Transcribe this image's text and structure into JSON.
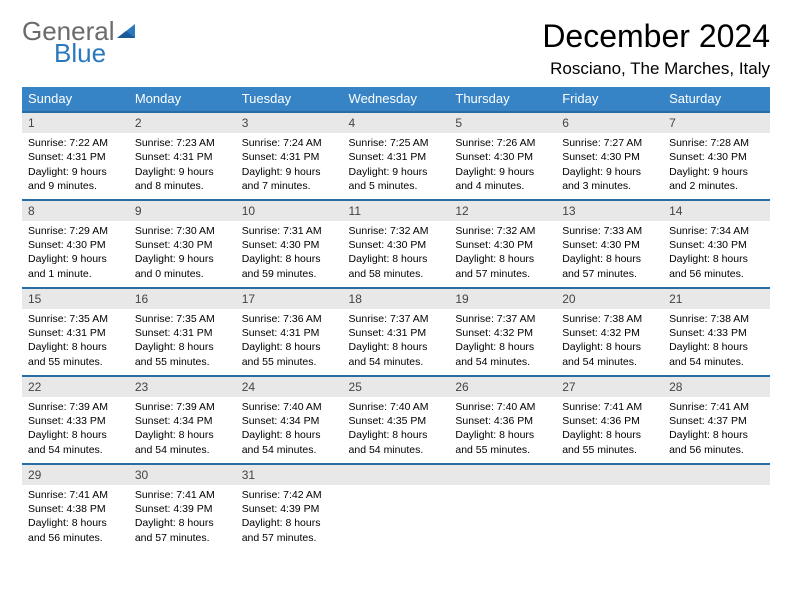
{
  "logo": {
    "text1": "General",
    "text2": "Blue"
  },
  "title": "December 2024",
  "location": "Rosciano, The Marches, Italy",
  "header_color": "#3684c6",
  "divider_color": "#2a6aa5",
  "daynum_bg": "#e8e8e8",
  "weekdays": [
    "Sunday",
    "Monday",
    "Tuesday",
    "Wednesday",
    "Thursday",
    "Friday",
    "Saturday"
  ],
  "weeks": [
    [
      {
        "n": "1",
        "sr": "7:22 AM",
        "ss": "4:31 PM",
        "dl": "9 hours and 9 minutes."
      },
      {
        "n": "2",
        "sr": "7:23 AM",
        "ss": "4:31 PM",
        "dl": "9 hours and 8 minutes."
      },
      {
        "n": "3",
        "sr": "7:24 AM",
        "ss": "4:31 PM",
        "dl": "9 hours and 7 minutes."
      },
      {
        "n": "4",
        "sr": "7:25 AM",
        "ss": "4:31 PM",
        "dl": "9 hours and 5 minutes."
      },
      {
        "n": "5",
        "sr": "7:26 AM",
        "ss": "4:30 PM",
        "dl": "9 hours and 4 minutes."
      },
      {
        "n": "6",
        "sr": "7:27 AM",
        "ss": "4:30 PM",
        "dl": "9 hours and 3 minutes."
      },
      {
        "n": "7",
        "sr": "7:28 AM",
        "ss": "4:30 PM",
        "dl": "9 hours and 2 minutes."
      }
    ],
    [
      {
        "n": "8",
        "sr": "7:29 AM",
        "ss": "4:30 PM",
        "dl": "9 hours and 1 minute."
      },
      {
        "n": "9",
        "sr": "7:30 AM",
        "ss": "4:30 PM",
        "dl": "9 hours and 0 minutes."
      },
      {
        "n": "10",
        "sr": "7:31 AM",
        "ss": "4:30 PM",
        "dl": "8 hours and 59 minutes."
      },
      {
        "n": "11",
        "sr": "7:32 AM",
        "ss": "4:30 PM",
        "dl": "8 hours and 58 minutes."
      },
      {
        "n": "12",
        "sr": "7:32 AM",
        "ss": "4:30 PM",
        "dl": "8 hours and 57 minutes."
      },
      {
        "n": "13",
        "sr": "7:33 AM",
        "ss": "4:30 PM",
        "dl": "8 hours and 57 minutes."
      },
      {
        "n": "14",
        "sr": "7:34 AM",
        "ss": "4:30 PM",
        "dl": "8 hours and 56 minutes."
      }
    ],
    [
      {
        "n": "15",
        "sr": "7:35 AM",
        "ss": "4:31 PM",
        "dl": "8 hours and 55 minutes."
      },
      {
        "n": "16",
        "sr": "7:35 AM",
        "ss": "4:31 PM",
        "dl": "8 hours and 55 minutes."
      },
      {
        "n": "17",
        "sr": "7:36 AM",
        "ss": "4:31 PM",
        "dl": "8 hours and 55 minutes."
      },
      {
        "n": "18",
        "sr": "7:37 AM",
        "ss": "4:31 PM",
        "dl": "8 hours and 54 minutes."
      },
      {
        "n": "19",
        "sr": "7:37 AM",
        "ss": "4:32 PM",
        "dl": "8 hours and 54 minutes."
      },
      {
        "n": "20",
        "sr": "7:38 AM",
        "ss": "4:32 PM",
        "dl": "8 hours and 54 minutes."
      },
      {
        "n": "21",
        "sr": "7:38 AM",
        "ss": "4:33 PM",
        "dl": "8 hours and 54 minutes."
      }
    ],
    [
      {
        "n": "22",
        "sr": "7:39 AM",
        "ss": "4:33 PM",
        "dl": "8 hours and 54 minutes."
      },
      {
        "n": "23",
        "sr": "7:39 AM",
        "ss": "4:34 PM",
        "dl": "8 hours and 54 minutes."
      },
      {
        "n": "24",
        "sr": "7:40 AM",
        "ss": "4:34 PM",
        "dl": "8 hours and 54 minutes."
      },
      {
        "n": "25",
        "sr": "7:40 AM",
        "ss": "4:35 PM",
        "dl": "8 hours and 54 minutes."
      },
      {
        "n": "26",
        "sr": "7:40 AM",
        "ss": "4:36 PM",
        "dl": "8 hours and 55 minutes."
      },
      {
        "n": "27",
        "sr": "7:41 AM",
        "ss": "4:36 PM",
        "dl": "8 hours and 55 minutes."
      },
      {
        "n": "28",
        "sr": "7:41 AM",
        "ss": "4:37 PM",
        "dl": "8 hours and 56 minutes."
      }
    ],
    [
      {
        "n": "29",
        "sr": "7:41 AM",
        "ss": "4:38 PM",
        "dl": "8 hours and 56 minutes."
      },
      {
        "n": "30",
        "sr": "7:41 AM",
        "ss": "4:39 PM",
        "dl": "8 hours and 57 minutes."
      },
      {
        "n": "31",
        "sr": "7:42 AM",
        "ss": "4:39 PM",
        "dl": "8 hours and 57 minutes."
      },
      null,
      null,
      null,
      null
    ]
  ],
  "labels": {
    "sunrise": "Sunrise:",
    "sunset": "Sunset:",
    "daylight": "Daylight:"
  }
}
